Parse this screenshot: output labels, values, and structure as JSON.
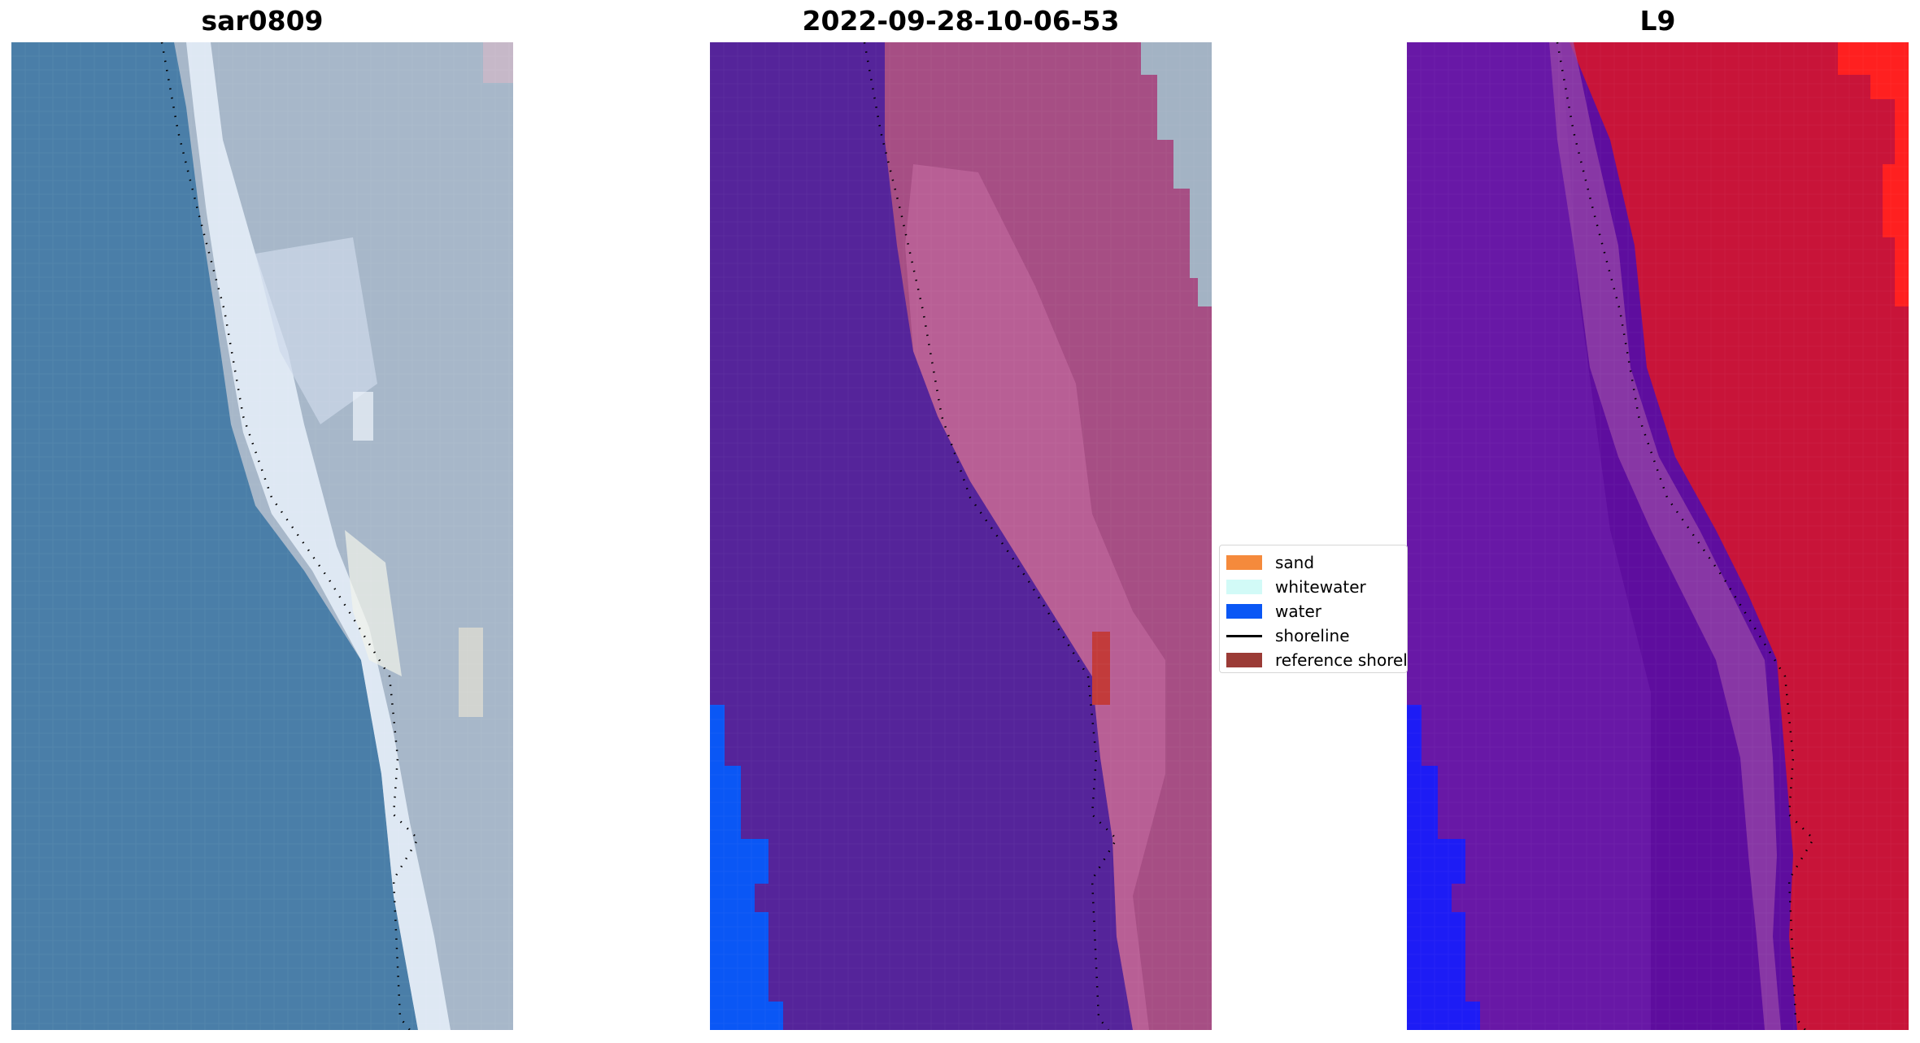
{
  "panels": [
    {
      "title": "sar0809"
    },
    {
      "title": "2022-09-28-10-06-53"
    },
    {
      "title": "L9"
    }
  ],
  "legend": {
    "items": [
      {
        "label": "sand",
        "color": "#f58a3c",
        "kind": "patch"
      },
      {
        "label": "whitewater",
        "color": "#d2faf7",
        "kind": "patch"
      },
      {
        "label": "water",
        "color": "#0a57f5",
        "kind": "patch"
      },
      {
        "label": "shoreline",
        "color": "#000000",
        "kind": "line"
      },
      {
        "label": "reference shoreline",
        "color": "#9b3b36",
        "kind": "patch"
      }
    ]
  },
  "colors": {
    "rgb_water": "#4a7ea8",
    "rgb_land": "#a7b7c9",
    "rgb_whitewater": "#e6eef7",
    "class_water_overlay": "#55249a",
    "class_land": "#a64e84",
    "class_land_light": "#c46aa0",
    "class_unclassified": "#a3b3c4",
    "class_water_edge": "#0a57f5",
    "class_reference": "#c23b3b",
    "index_water": "#5e0d9e",
    "index_land": "#c81439",
    "index_bright": "#ff2020",
    "index_edge": "#1d1cf5"
  }
}
